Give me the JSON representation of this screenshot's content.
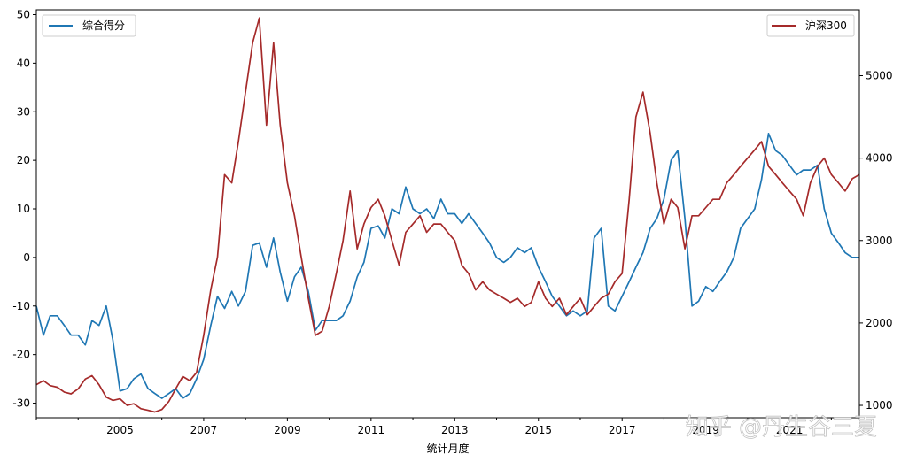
{
  "chart_data": {
    "type": "line",
    "xlabel": "统计月度",
    "x_ticks": [
      "2005",
      "2007",
      "2009",
      "2011",
      "2013",
      "2015",
      "2017",
      "2019",
      "2021"
    ],
    "x_range": [
      2003.0,
      2022.67
    ],
    "y_left": {
      "ticks": [
        50,
        40,
        30,
        20,
        10,
        0,
        -10,
        -20,
        -30
      ],
      "range": [
        -33,
        51
      ]
    },
    "y_right": {
      "ticks": [
        5000,
        4000,
        3000,
        2000,
        1000
      ],
      "range": [
        850,
        5800
      ]
    },
    "grid": false,
    "series": [
      {
        "name": "综合得分",
        "axis": "left",
        "color": "#1f77b4",
        "legend_position": "top-left",
        "points": [
          [
            2003.0,
            -10
          ],
          [
            2003.17,
            -16
          ],
          [
            2003.33,
            -12
          ],
          [
            2003.5,
            -12
          ],
          [
            2003.67,
            -14
          ],
          [
            2003.83,
            -16
          ],
          [
            2004.0,
            -16
          ],
          [
            2004.17,
            -18
          ],
          [
            2004.33,
            -13
          ],
          [
            2004.5,
            -14
          ],
          [
            2004.67,
            -10
          ],
          [
            2004.83,
            -17
          ],
          [
            2005.0,
            -27.5
          ],
          [
            2005.17,
            -27
          ],
          [
            2005.33,
            -25
          ],
          [
            2005.5,
            -24
          ],
          [
            2005.67,
            -27
          ],
          [
            2005.83,
            -28
          ],
          [
            2006.0,
            -29
          ],
          [
            2006.17,
            -28
          ],
          [
            2006.33,
            -27
          ],
          [
            2006.5,
            -29
          ],
          [
            2006.67,
            -28
          ],
          [
            2006.83,
            -25
          ],
          [
            2007.0,
            -21
          ],
          [
            2007.17,
            -14
          ],
          [
            2007.33,
            -8
          ],
          [
            2007.5,
            -10.5
          ],
          [
            2007.67,
            -7
          ],
          [
            2007.83,
            -10
          ],
          [
            2008.0,
            -7
          ],
          [
            2008.17,
            2.5
          ],
          [
            2008.33,
            3
          ],
          [
            2008.5,
            -2
          ],
          [
            2008.67,
            4
          ],
          [
            2008.83,
            -3
          ],
          [
            2009.0,
            -9
          ],
          [
            2009.17,
            -4
          ],
          [
            2009.33,
            -2
          ],
          [
            2009.5,
            -7
          ],
          [
            2009.67,
            -15
          ],
          [
            2009.83,
            -13
          ],
          [
            2010.0,
            -13
          ],
          [
            2010.17,
            -13
          ],
          [
            2010.33,
            -12
          ],
          [
            2010.5,
            -9
          ],
          [
            2010.67,
            -4
          ],
          [
            2010.83,
            -1
          ],
          [
            2011.0,
            6
          ],
          [
            2011.17,
            6.5
          ],
          [
            2011.33,
            4
          ],
          [
            2011.5,
            10
          ],
          [
            2011.67,
            9
          ],
          [
            2011.83,
            14.5
          ],
          [
            2012.0,
            10
          ],
          [
            2012.17,
            9
          ],
          [
            2012.33,
            10
          ],
          [
            2012.5,
            8
          ],
          [
            2012.67,
            12
          ],
          [
            2012.83,
            9
          ],
          [
            2013.0,
            9
          ],
          [
            2013.17,
            7
          ],
          [
            2013.33,
            9
          ],
          [
            2013.5,
            7
          ],
          [
            2013.67,
            5
          ],
          [
            2013.83,
            3
          ],
          [
            2014.0,
            0
          ],
          [
            2014.17,
            -1
          ],
          [
            2014.33,
            0
          ],
          [
            2014.5,
            2
          ],
          [
            2014.67,
            1
          ],
          [
            2014.83,
            2
          ],
          [
            2015.0,
            -2
          ],
          [
            2015.17,
            -5
          ],
          [
            2015.33,
            -8
          ],
          [
            2015.5,
            -10
          ],
          [
            2015.67,
            -12
          ],
          [
            2015.83,
            -11
          ],
          [
            2016.0,
            -12
          ],
          [
            2016.17,
            -11
          ],
          [
            2016.33,
            4
          ],
          [
            2016.5,
            6
          ],
          [
            2016.67,
            -10
          ],
          [
            2016.83,
            -11
          ],
          [
            2017.0,
            -8
          ],
          [
            2017.17,
            -5
          ],
          [
            2017.33,
            -2
          ],
          [
            2017.5,
            1
          ],
          [
            2017.67,
            6
          ],
          [
            2017.83,
            8
          ],
          [
            2018.0,
            12
          ],
          [
            2018.17,
            20
          ],
          [
            2018.33,
            22
          ],
          [
            2018.5,
            8
          ],
          [
            2018.67,
            -10
          ],
          [
            2018.83,
            -9
          ],
          [
            2019.0,
            -6
          ],
          [
            2019.17,
            -7
          ],
          [
            2019.33,
            -5
          ],
          [
            2019.5,
            -3
          ],
          [
            2019.67,
            0
          ],
          [
            2019.83,
            6
          ],
          [
            2020.0,
            8
          ],
          [
            2020.17,
            10
          ],
          [
            2020.33,
            16
          ],
          [
            2020.5,
            25.5
          ],
          [
            2020.67,
            22
          ],
          [
            2020.83,
            21
          ],
          [
            2021.0,
            19
          ],
          [
            2021.17,
            17
          ],
          [
            2021.33,
            18
          ],
          [
            2021.5,
            18
          ],
          [
            2021.67,
            19
          ],
          [
            2021.83,
            10
          ],
          [
            2022.0,
            5
          ],
          [
            2022.17,
            3
          ],
          [
            2022.33,
            1
          ],
          [
            2022.5,
            0
          ],
          [
            2022.67,
            0
          ]
        ]
      },
      {
        "name": "沪深300",
        "axis": "right",
        "color": "#a52a2a",
        "legend_position": "top-right",
        "points": [
          [
            2003.0,
            1250
          ],
          [
            2003.17,
            1300
          ],
          [
            2003.33,
            1240
          ],
          [
            2003.5,
            1220
          ],
          [
            2003.67,
            1160
          ],
          [
            2003.83,
            1140
          ],
          [
            2004.0,
            1200
          ],
          [
            2004.17,
            1320
          ],
          [
            2004.33,
            1360
          ],
          [
            2004.5,
            1250
          ],
          [
            2004.67,
            1100
          ],
          [
            2004.83,
            1060
          ],
          [
            2005.0,
            1080
          ],
          [
            2005.17,
            1000
          ],
          [
            2005.33,
            1020
          ],
          [
            2005.5,
            960
          ],
          [
            2005.67,
            940
          ],
          [
            2005.83,
            920
          ],
          [
            2006.0,
            950
          ],
          [
            2006.17,
            1050
          ],
          [
            2006.33,
            1200
          ],
          [
            2006.5,
            1350
          ],
          [
            2006.67,
            1300
          ],
          [
            2006.83,
            1400
          ],
          [
            2007.0,
            1850
          ],
          [
            2007.17,
            2400
          ],
          [
            2007.33,
            2800
          ],
          [
            2007.5,
            3800
          ],
          [
            2007.67,
            3700
          ],
          [
            2007.83,
            4200
          ],
          [
            2008.0,
            4800
          ],
          [
            2008.17,
            5400
          ],
          [
            2008.33,
            5700
          ],
          [
            2008.5,
            4400
          ],
          [
            2008.67,
            5400
          ],
          [
            2008.83,
            4400
          ],
          [
            2009.0,
            3700
          ],
          [
            2009.17,
            3300
          ],
          [
            2009.33,
            2800
          ],
          [
            2009.5,
            2300
          ],
          [
            2009.67,
            1850
          ],
          [
            2009.83,
            1900
          ],
          [
            2010.0,
            2200
          ],
          [
            2010.17,
            2600
          ],
          [
            2010.33,
            3000
          ],
          [
            2010.5,
            3600
          ],
          [
            2010.67,
            2900
          ],
          [
            2010.83,
            3200
          ],
          [
            2011.0,
            3400
          ],
          [
            2011.17,
            3500
          ],
          [
            2011.33,
            3300
          ],
          [
            2011.5,
            3000
          ],
          [
            2011.67,
            2700
          ],
          [
            2011.83,
            3100
          ],
          [
            2012.0,
            3200
          ],
          [
            2012.17,
            3300
          ],
          [
            2012.33,
            3100
          ],
          [
            2012.5,
            3200
          ],
          [
            2012.67,
            3200
          ],
          [
            2012.83,
            3100
          ],
          [
            2013.0,
            3000
          ],
          [
            2013.17,
            2700
          ],
          [
            2013.33,
            2600
          ],
          [
            2013.5,
            2400
          ],
          [
            2013.67,
            2500
          ],
          [
            2013.83,
            2400
          ],
          [
            2014.0,
            2350
          ],
          [
            2014.17,
            2300
          ],
          [
            2014.33,
            2250
          ],
          [
            2014.5,
            2300
          ],
          [
            2014.67,
            2200
          ],
          [
            2014.83,
            2250
          ],
          [
            2015.0,
            2500
          ],
          [
            2015.17,
            2300
          ],
          [
            2015.33,
            2200
          ],
          [
            2015.5,
            2300
          ],
          [
            2015.67,
            2100
          ],
          [
            2015.83,
            2200
          ],
          [
            2016.0,
            2300
          ],
          [
            2016.17,
            2100
          ],
          [
            2016.33,
            2200
          ],
          [
            2016.5,
            2300
          ],
          [
            2016.67,
            2350
          ],
          [
            2016.83,
            2500
          ],
          [
            2017.0,
            2600
          ],
          [
            2017.17,
            3500
          ],
          [
            2017.33,
            4500
          ],
          [
            2017.5,
            4800
          ],
          [
            2017.67,
            4300
          ],
          [
            2017.83,
            3700
          ],
          [
            2018.0,
            3200
          ],
          [
            2018.17,
            3500
          ],
          [
            2018.33,
            3400
          ],
          [
            2018.5,
            2900
          ],
          [
            2018.67,
            3300
          ],
          [
            2018.83,
            3300
          ],
          [
            2019.0,
            3400
          ],
          [
            2019.17,
            3500
          ],
          [
            2019.33,
            3500
          ],
          [
            2019.5,
            3700
          ],
          [
            2019.67,
            3800
          ],
          [
            2019.83,
            3900
          ],
          [
            2020.0,
            4000
          ],
          [
            2020.17,
            4100
          ],
          [
            2020.33,
            4200
          ],
          [
            2020.5,
            3900
          ],
          [
            2020.67,
            3800
          ],
          [
            2020.83,
            3700
          ],
          [
            2021.0,
            3600
          ],
          [
            2021.17,
            3500
          ],
          [
            2021.33,
            3300
          ],
          [
            2021.5,
            3700
          ],
          [
            2021.67,
            3900
          ],
          [
            2021.83,
            4000
          ],
          [
            2022.0,
            3800
          ],
          [
            2022.17,
            3700
          ],
          [
            2022.33,
            3600
          ],
          [
            2022.5,
            3750
          ],
          [
            2022.67,
            3800
          ]
        ]
      }
    ]
  },
  "watermark": "知乎 @丹生谷三夏"
}
